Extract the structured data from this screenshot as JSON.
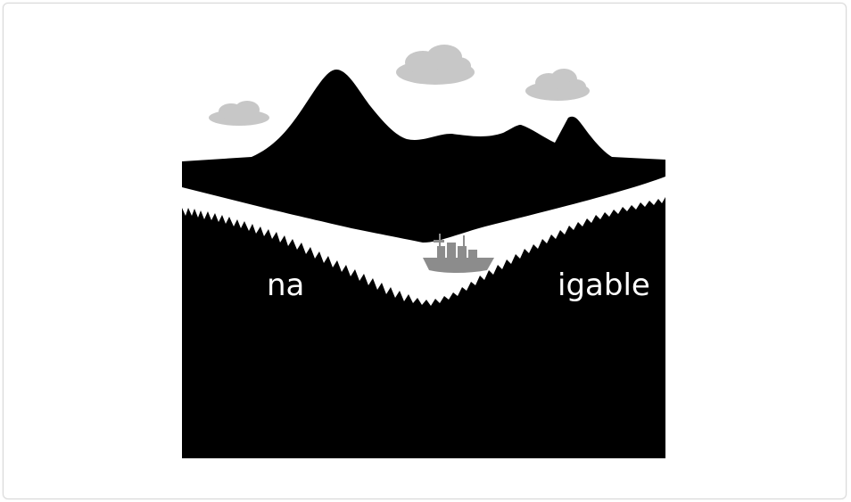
{
  "illustration": {
    "word_left": "na",
    "word_right": "igable",
    "colors": {
      "ink": "#000000",
      "cloud": "#c7c7c7",
      "ship": "#8c8c8c",
      "water": "#ffffff"
    },
    "icons": [
      "mountain-range",
      "cloud-icon",
      "ship-icon",
      "forest"
    ]
  }
}
